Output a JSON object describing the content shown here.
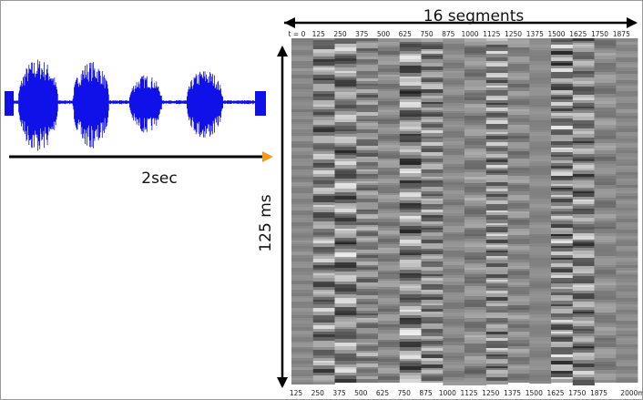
{
  "segments_label": "16 segments",
  "duration_label": "2sec",
  "window_label": "125 ms",
  "top_labels": [
    "t = 0",
    "125",
    "250",
    "375",
    "500",
    "625",
    "750",
    "875",
    "1000",
    "1125",
    "1250",
    "1375",
    "1500",
    "1625",
    "1750",
    "1875"
  ],
  "bottom_labels": [
    "125",
    "250",
    "375",
    "500",
    "625",
    "750",
    "875",
    "1000",
    "1125",
    "1250",
    "1375",
    "1500",
    "1625",
    "1750",
    "1875",
    "2000m"
  ]
}
